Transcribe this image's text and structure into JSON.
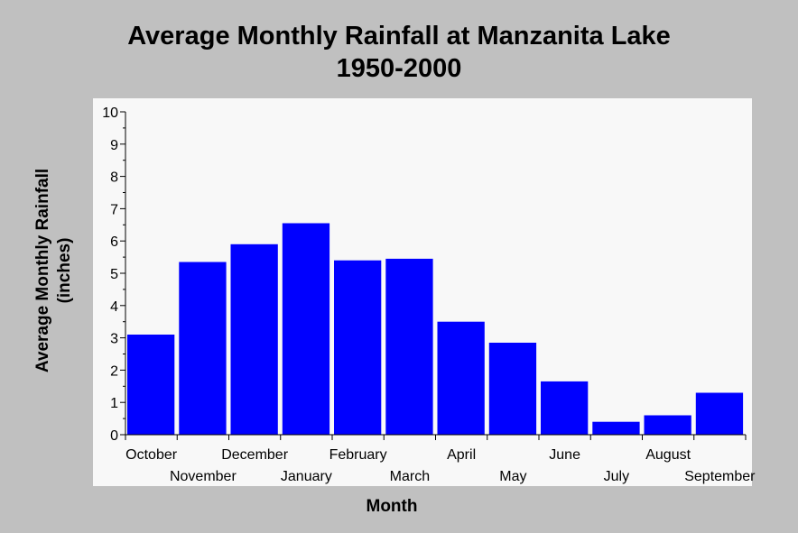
{
  "chart_data": {
    "type": "bar",
    "title": "Average Monthly Rainfall at Manzanita Lake",
    "subtitle": "1950-2000",
    "xlabel": "Month",
    "ylabel": "Average Monthly Rainfall",
    "ylabel_units": "(inches)",
    "categories": [
      "October",
      "November",
      "December",
      "January",
      "February",
      "March",
      "April",
      "May",
      "June",
      "July",
      "August",
      "September"
    ],
    "values": [
      3.1,
      5.35,
      5.9,
      6.55,
      5.4,
      5.45,
      3.5,
      2.85,
      1.65,
      0.4,
      0.6,
      1.3
    ],
    "ylim": [
      0,
      10
    ],
    "yticks": [
      "0",
      "1",
      "2",
      "3",
      "4",
      "5",
      "6",
      "7",
      "8",
      "9",
      "10"
    ],
    "bar_color": "#0000ff",
    "plot_background": "#f8f8f8",
    "background": "#c0c0c0",
    "grid": false,
    "legend": "none"
  }
}
